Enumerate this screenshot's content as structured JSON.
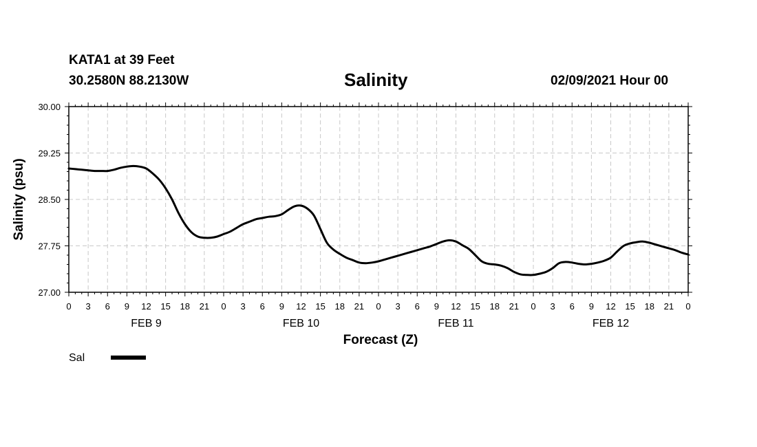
{
  "header": {
    "station": "KATA1 at 39 Feet",
    "coords": "30.2580N 88.2130W",
    "title": "Salinity",
    "run_time": "02/09/2021 Hour 00"
  },
  "chart_data": {
    "type": "line",
    "title": "Salinity",
    "xlabel": "Forecast (Z)",
    "ylabel": "Salinity (psu)",
    "ylim": [
      27.0,
      30.0
    ],
    "yticks": [
      27.0,
      27.75,
      28.5,
      29.25,
      30.0
    ],
    "ytick_labels": [
      "27.00",
      "27.75",
      "28.50",
      "29.25",
      "30.00"
    ],
    "xlim": [
      0,
      96
    ],
    "x_unit": "forecast hour",
    "xtick_step_hours": 3,
    "xtick_labels": [
      "0",
      "3",
      "6",
      "9",
      "12",
      "15",
      "18",
      "21",
      "0",
      "3",
      "6",
      "9",
      "12",
      "15",
      "18",
      "21",
      "0",
      "3",
      "6",
      "9",
      "12",
      "15",
      "18",
      "21",
      "0",
      "3",
      "6",
      "9",
      "12",
      "15",
      "18",
      "21",
      "0"
    ],
    "day_labels": [
      {
        "label": "FEB 9",
        "hour": 12
      },
      {
        "label": "FEB 10",
        "hour": 36
      },
      {
        "label": "FEB 11",
        "hour": 60
      },
      {
        "label": "FEB 12",
        "hour": 84
      }
    ],
    "grid": true,
    "series": [
      {
        "name": "Sal",
        "x": [
          0,
          1,
          2,
          3,
          4,
          5,
          6,
          7,
          8,
          9,
          10,
          11,
          12,
          13,
          14,
          15,
          16,
          17,
          18,
          19,
          20,
          21,
          22,
          23,
          24,
          25,
          26,
          27,
          28,
          29,
          30,
          31,
          32,
          33,
          34,
          35,
          36,
          37,
          38,
          39,
          40,
          41,
          42,
          43,
          44,
          45,
          46,
          47,
          48,
          49,
          50,
          51,
          52,
          53,
          54,
          55,
          56,
          57,
          58,
          59,
          60,
          61,
          62,
          63,
          64,
          65,
          66,
          67,
          68,
          69,
          70,
          71,
          72,
          73,
          74,
          75,
          76,
          77,
          78,
          79,
          80,
          81,
          82,
          83,
          84,
          85,
          86,
          87,
          88,
          89,
          90,
          91,
          92,
          93,
          94,
          95,
          96
        ],
        "y": [
          29.0,
          28.99,
          28.98,
          28.97,
          28.96,
          28.96,
          28.96,
          28.98,
          29.01,
          29.03,
          29.04,
          29.03,
          29.0,
          28.92,
          28.82,
          28.68,
          28.5,
          28.28,
          28.1,
          27.97,
          27.9,
          27.88,
          27.88,
          27.9,
          27.94,
          27.98,
          28.04,
          28.1,
          28.14,
          28.18,
          28.2,
          28.22,
          28.23,
          28.26,
          28.33,
          28.39,
          28.4,
          28.35,
          28.24,
          28.02,
          27.8,
          27.69,
          27.62,
          27.56,
          27.52,
          27.48,
          27.47,
          27.48,
          27.5,
          27.53,
          27.56,
          27.59,
          27.62,
          27.65,
          27.68,
          27.71,
          27.74,
          27.78,
          27.82,
          27.84,
          27.82,
          27.76,
          27.7,
          27.6,
          27.5,
          27.46,
          27.45,
          27.43,
          27.39,
          27.33,
          27.29,
          27.28,
          27.28,
          27.3,
          27.33,
          27.39,
          27.47,
          27.49,
          27.48,
          27.46,
          27.45,
          27.46,
          27.48,
          27.51,
          27.56,
          27.66,
          27.75,
          27.79,
          27.81,
          27.82,
          27.8,
          27.77,
          27.74,
          27.71,
          27.68,
          27.64,
          27.61
        ],
        "color": "#000000"
      }
    ],
    "legend": [
      {
        "label": "Sal",
        "color": "#000000"
      }
    ],
    "legend_placement": "bottom-left"
  }
}
